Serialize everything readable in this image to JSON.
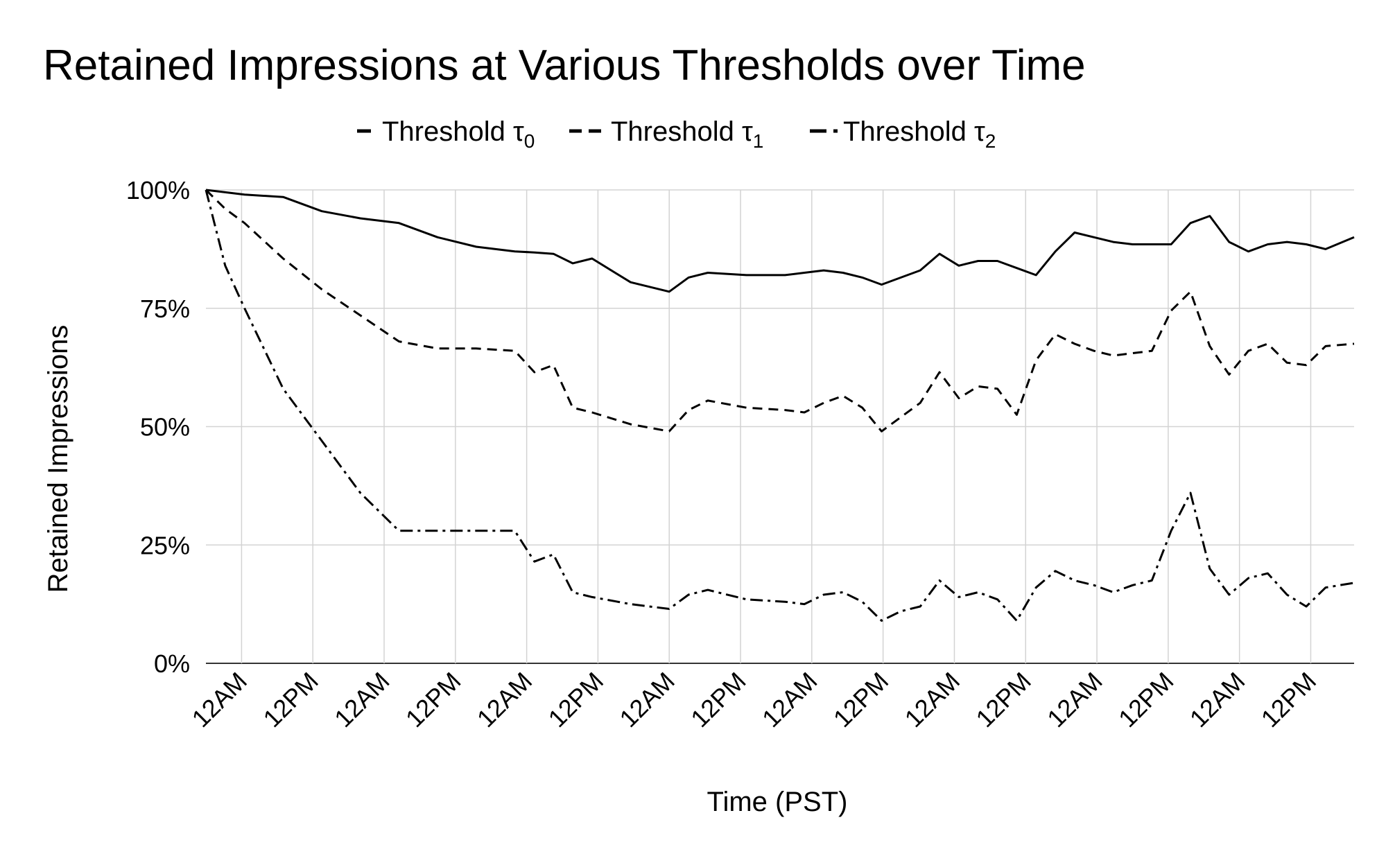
{
  "chart_data": {
    "type": "line",
    "title": "Retained Impressions at Various Thresholds over Time",
    "xlabel": "Time (PST)",
    "ylabel": "Retained Impressions",
    "ylim": [
      0,
      100
    ],
    "yticks": [
      0,
      25,
      50,
      75,
      100
    ],
    "ytick_labels": [
      "0%",
      "25%",
      "50%",
      "75%",
      "100%"
    ],
    "x_tick_labels": [
      "12AM",
      "12PM",
      "12AM",
      "12PM",
      "12AM",
      "12PM",
      "12AM",
      "12PM",
      "12AM",
      "12PM",
      "12AM",
      "12PM",
      "12AM",
      "12PM",
      "12AM",
      "12PM"
    ],
    "x_tick_hours": [
      6,
      18,
      30,
      42,
      54,
      66,
      78,
      90,
      102,
      114,
      126,
      138,
      150,
      162,
      174,
      186
    ],
    "xlim": [
      0,
      193.3
    ],
    "x_unit": "hours",
    "grid": true,
    "legend_position": "top",
    "series": [
      {
        "name": "Threshold τ₀",
        "legend_label": "Threshold",
        "legend_sub": "0",
        "dash": "",
        "x": [
          0,
          3.25,
          6.5,
          13,
          19.5,
          26,
          32.5,
          39,
          45.5,
          52,
          55.3,
          58.5,
          61.75,
          65,
          71.5,
          78,
          81.25,
          84.5,
          91,
          97.5,
          100.75,
          104,
          107.25,
          110.5,
          113.75,
          117,
          120.25,
          123.5,
          126.75,
          130,
          133.25,
          136.5,
          139.75,
          143,
          146.25,
          149.5,
          152.75,
          156,
          159.25,
          162.5,
          165.75,
          169,
          172.25,
          175.5,
          178.75,
          182,
          185.25,
          188.5,
          193.3
        ],
        "y": [
          100,
          99.5,
          99,
          98.5,
          95.5,
          94,
          93,
          90,
          88,
          87,
          86.8,
          86.5,
          84.5,
          85.5,
          80.5,
          78.5,
          81.5,
          82.5,
          82,
          82,
          82.5,
          83,
          82.5,
          81.5,
          80,
          81.5,
          83,
          86.5,
          84,
          85,
          85,
          83.5,
          82,
          87,
          91,
          90,
          89,
          88.5,
          88.5,
          88.5,
          93,
          94.5,
          89,
          87,
          88.5,
          89,
          88.5,
          87.5,
          90
        ]
      },
      {
        "name": "Threshold τ₁",
        "legend_label": "Threshold",
        "legend_sub": "1",
        "dash": "14 9",
        "x": [
          0,
          3.25,
          6.5,
          13,
          19.5,
          26,
          32.5,
          39,
          45.5,
          52,
          55.3,
          58.5,
          61.75,
          65,
          71.5,
          78,
          81.25,
          84.5,
          91,
          97.5,
          100.75,
          104,
          107.25,
          110.5,
          113.75,
          117,
          120.25,
          123.5,
          126.75,
          130,
          133.25,
          136.5,
          139.75,
          143,
          146.25,
          149.5,
          152.75,
          156,
          159.25,
          162.5,
          165.75,
          169,
          172.25,
          175.5,
          178.75,
          182,
          185.25,
          188.5,
          193.3
        ],
        "y": [
          100,
          96,
          93,
          85.5,
          79,
          73.5,
          68,
          66.5,
          66.5,
          66,
          61.5,
          63,
          54,
          53,
          50.5,
          49,
          53.5,
          55.5,
          54,
          53.5,
          53,
          55,
          56.5,
          54,
          49,
          52,
          55,
          61.5,
          56,
          58.5,
          58,
          52.5,
          64,
          69.5,
          67.5,
          66,
          65,
          65.5,
          66,
          74.5,
          78.5,
          67,
          61,
          66,
          67.5,
          63.5,
          63,
          67,
          67.5
        ]
      },
      {
        "name": "Threshold τ₂",
        "legend_label": "Threshold",
        "legend_sub": "2",
        "dash": "18 7 4 7",
        "x": [
          0,
          3.25,
          6.5,
          13,
          19.5,
          26,
          32.5,
          39,
          45.5,
          52,
          55.3,
          58.5,
          61.75,
          65,
          71.5,
          78,
          81.25,
          84.5,
          91,
          97.5,
          100.75,
          104,
          107.25,
          110.5,
          113.75,
          117,
          120.25,
          123.5,
          126.75,
          130,
          133.25,
          136.5,
          139.75,
          143,
          146.25,
          149.5,
          152.75,
          156,
          159.25,
          162.5,
          165.75,
          169,
          172.25,
          175.5,
          178.75,
          182,
          185.25,
          188.5,
          193.3
        ],
        "y": [
          100,
          84,
          75,
          58,
          47,
          36,
          28,
          28,
          28,
          28,
          21.5,
          23,
          15,
          14,
          12.5,
          11.5,
          14.5,
          15.5,
          13.5,
          13,
          12.5,
          14.5,
          15,
          13,
          9,
          11,
          12,
          17.5,
          14,
          15,
          13.5,
          9,
          16,
          19.5,
          17.5,
          16.5,
          15,
          16.5,
          17.5,
          28,
          36,
          20,
          14.5,
          18,
          19,
          14.5,
          12,
          16,
          17
        ]
      }
    ]
  }
}
